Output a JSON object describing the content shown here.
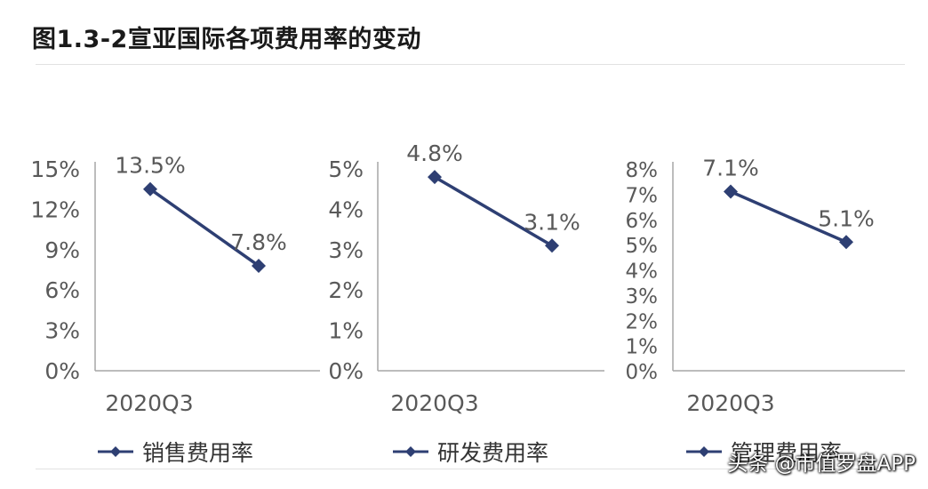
{
  "title": "图1.3-2宣亚国际各项费用率的变动",
  "watermark": "头条 @市值罗盘APP",
  "colors": {
    "series": "#2e3f73",
    "axis": "#a6a6a6",
    "text": "#595959"
  },
  "chart_data": [
    {
      "type": "line",
      "x": [
        "2020Q3",
        ""
      ],
      "x_axis_label": "2020Q3",
      "series": [
        {
          "name": "销售费用率",
          "values": [
            13.5,
            7.8
          ]
        }
      ],
      "value_labels": [
        "13.5%",
        "7.8%"
      ],
      "yticks": [
        "0%",
        "3%",
        "6%",
        "9%",
        "12%",
        "15%"
      ],
      "ylim": [
        0,
        15
      ],
      "legend": "bottom",
      "marker": "diamond"
    },
    {
      "type": "line",
      "x": [
        "2020Q3",
        ""
      ],
      "x_axis_label": "2020Q3",
      "series": [
        {
          "name": "研发费用率",
          "values": [
            4.8,
            3.1
          ]
        }
      ],
      "value_labels": [
        "4.8%",
        "3.1%"
      ],
      "yticks": [
        "0%",
        "1%",
        "2%",
        "3%",
        "4%",
        "5%"
      ],
      "ylim": [
        0,
        5
      ],
      "legend": "bottom",
      "marker": "diamond"
    },
    {
      "type": "line",
      "x": [
        "2020Q3",
        ""
      ],
      "x_axis_label": "2020Q3",
      "series": [
        {
          "name": "管理费用率",
          "values": [
            7.1,
            5.1
          ]
        }
      ],
      "value_labels": [
        "7.1%",
        "5.1%"
      ],
      "yticks": [
        "0%",
        "1%",
        "2%",
        "3%",
        "4%",
        "5%",
        "6%",
        "7%",
        "8%"
      ],
      "ylim": [
        0,
        8
      ],
      "legend": "bottom",
      "marker": "diamond"
    }
  ]
}
